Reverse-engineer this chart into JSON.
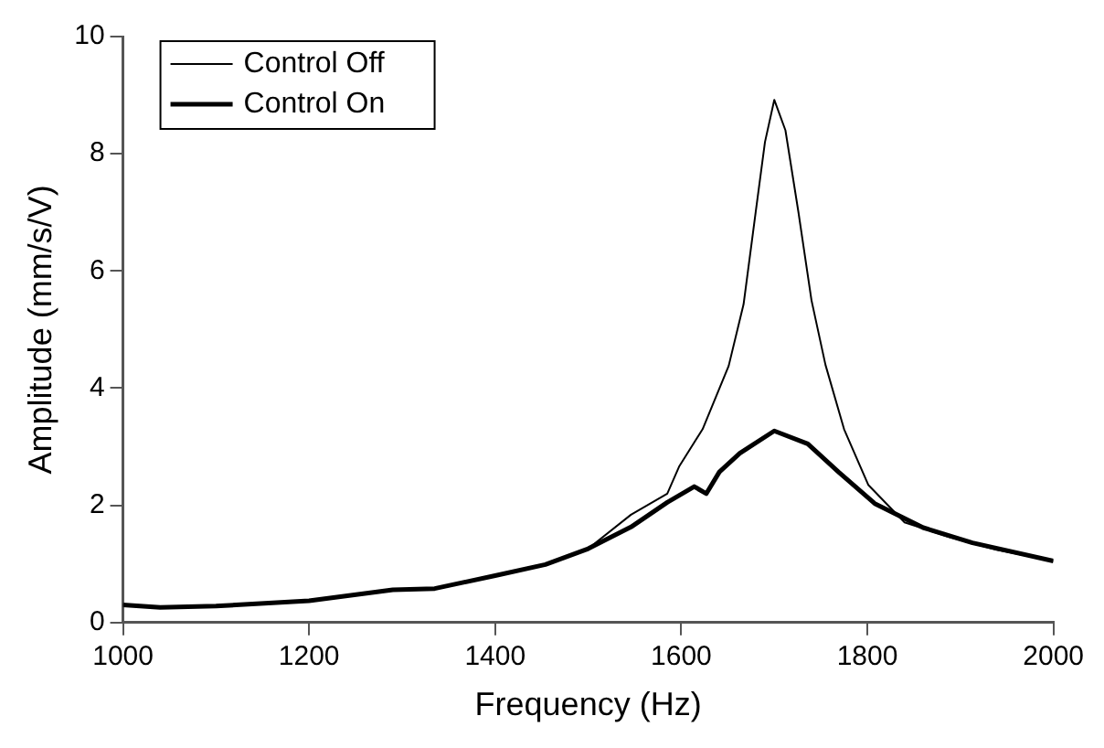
{
  "chart_data": {
    "type": "line",
    "xlabel": "Frequency (Hz)",
    "ylabel": "Amplitude (mm/s/V)",
    "xlim": [
      1000,
      2000
    ],
    "xticks": [
      1000,
      1200,
      1400,
      1600,
      1800,
      2000
    ],
    "ylim": [
      0,
      10
    ],
    "yticks": [
      0,
      2,
      4,
      6,
      8,
      10
    ],
    "grid": false,
    "legend": "top left",
    "marker": "none",
    "line_style": "solid",
    "series": [
      {
        "name": "Control Off",
        "color": "#000000",
        "x": [
          1000,
          1040,
          1100,
          1200,
          1290,
          1335,
          1400,
          1454,
          1500,
          1546,
          1585,
          1598,
          1623,
          1651,
          1667,
          1680,
          1690,
          1700,
          1712,
          1726,
          1740,
          1755,
          1775,
          1801,
          1840,
          1888,
          1939,
          2000
        ],
        "values": [
          0.3,
          0.26,
          0.28,
          0.37,
          0.56,
          0.58,
          0.8,
          0.99,
          1.26,
          1.84,
          2.2,
          2.67,
          3.3,
          4.38,
          5.43,
          7.0,
          8.2,
          8.92,
          8.4,
          7.0,
          5.5,
          4.4,
          3.3,
          2.35,
          1.71,
          1.46,
          1.24,
          1.05
        ]
      },
      {
        "name": "Control On",
        "color": "#000000",
        "x": [
          1000,
          1040,
          1100,
          1200,
          1290,
          1335,
          1400,
          1454,
          1500,
          1546,
          1585,
          1614,
          1627,
          1641,
          1663,
          1700,
          1736,
          1769,
          1808,
          1860,
          1913,
          2000
        ],
        "values": [
          0.3,
          0.26,
          0.28,
          0.37,
          0.56,
          0.58,
          0.8,
          0.99,
          1.26,
          1.63,
          2.05,
          2.32,
          2.2,
          2.57,
          2.89,
          3.27,
          3.05,
          2.57,
          2.03,
          1.62,
          1.36,
          1.05
        ]
      }
    ]
  }
}
